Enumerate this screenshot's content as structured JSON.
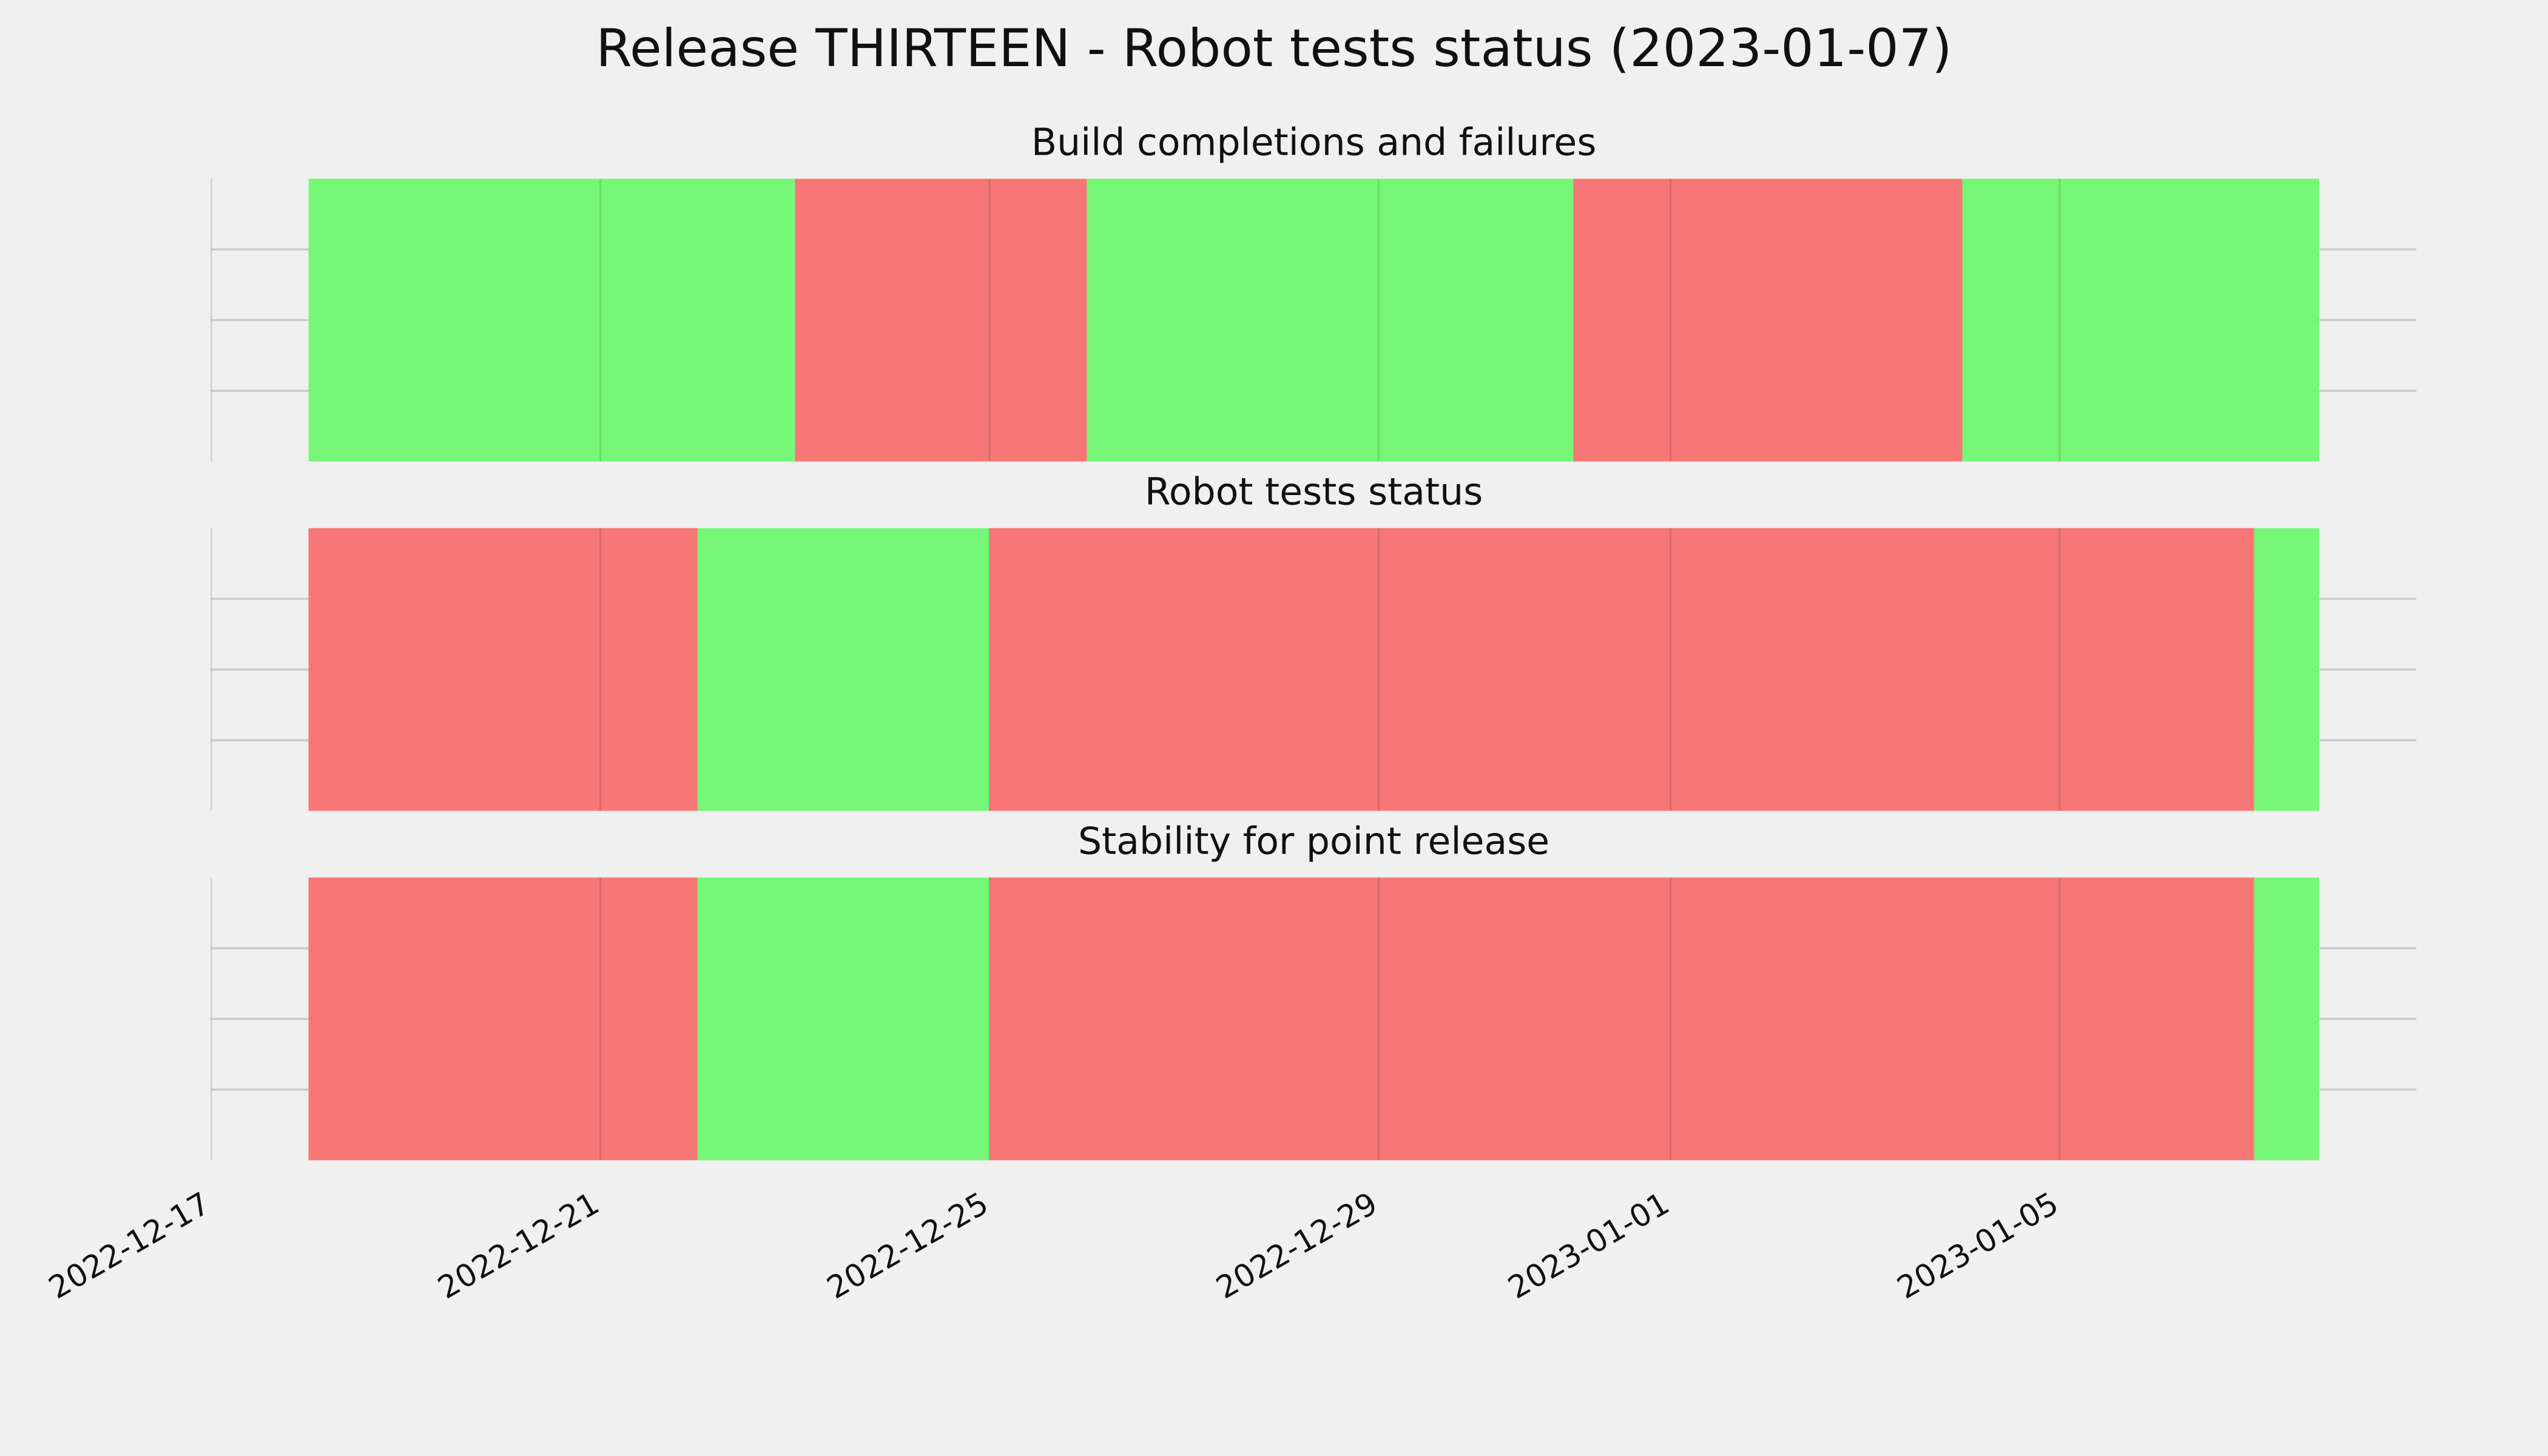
{
  "title": "Release THIRTEEN - Robot tests status (2023-01-07)",
  "chart_data": [
    {
      "type": "span",
      "title": "Build completions and failures",
      "spans": [
        {
          "start": "2022-12-18",
          "end": "2022-12-23",
          "color": "#77f777"
        },
        {
          "start": "2022-12-23",
          "end": "2022-12-26",
          "color": "#f77777"
        },
        {
          "start": "2022-12-26",
          "end": "2022-12-31",
          "color": "#77f777"
        },
        {
          "start": "2022-12-31",
          "end": "2023-01-04",
          "color": "#f77777"
        },
        {
          "start": "2023-01-04",
          "end": "2023-01-07T16:00",
          "color": "#77f777"
        }
      ],
      "xlim": [
        "2022-12-17",
        "2023-01-08T16:00"
      ],
      "xticks": [
        "2022-12-17",
        "2022-12-21",
        "2022-12-25",
        "2022-12-29",
        "2023-01-01",
        "2023-01-05"
      ],
      "ylim": [
        0,
        1
      ],
      "yticks": [
        0.25,
        0.5,
        0.75
      ],
      "grid": true
    },
    {
      "type": "span",
      "title": "Robot tests status",
      "spans": [
        {
          "start": "2022-12-18",
          "end": "2022-12-22",
          "color": "#f77777"
        },
        {
          "start": "2022-12-22",
          "end": "2022-12-25",
          "color": "#77f777"
        },
        {
          "start": "2022-12-25",
          "end": "2023-01-07",
          "color": "#f77777"
        },
        {
          "start": "2023-01-07",
          "end": "2023-01-07T16:00",
          "color": "#77f777"
        }
      ],
      "xlim": [
        "2022-12-17",
        "2023-01-08T16:00"
      ],
      "xticks": [
        "2022-12-17",
        "2022-12-21",
        "2022-12-25",
        "2022-12-29",
        "2023-01-01",
        "2023-01-05"
      ],
      "ylim": [
        0,
        1
      ],
      "yticks": [
        0.25,
        0.5,
        0.75
      ],
      "grid": true
    },
    {
      "type": "span",
      "title": "Stability for point release",
      "spans": [
        {
          "start": "2022-12-18",
          "end": "2022-12-22",
          "color": "#f77777"
        },
        {
          "start": "2022-12-22",
          "end": "2022-12-25",
          "color": "#77f777"
        },
        {
          "start": "2022-12-25",
          "end": "2023-01-07",
          "color": "#f77777"
        },
        {
          "start": "2023-01-07",
          "end": "2023-01-07T16:00",
          "color": "#77f777"
        }
      ],
      "xlim": [
        "2022-12-17",
        "2023-01-08T16:00"
      ],
      "xticks": [
        "2022-12-17",
        "2022-12-21",
        "2022-12-25",
        "2022-12-29",
        "2023-01-01",
        "2023-01-05"
      ],
      "ylim": [
        0,
        1
      ],
      "yticks": [
        0.25,
        0.5,
        0.75
      ],
      "grid": true
    }
  ]
}
